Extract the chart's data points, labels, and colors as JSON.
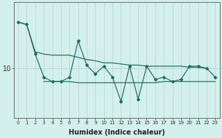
{
  "xlabel": "Humidex (Indice chaleur)",
  "bg_color": "#d4f0ec",
  "line_color": "#1a6e63",
  "grid_color": "#b8d8d4",
  "x_values": [
    0,
    1,
    2,
    3,
    4,
    5,
    6,
    7,
    8,
    9,
    10,
    11,
    12,
    13,
    14,
    15,
    16,
    17,
    18,
    19,
    20,
    21,
    22,
    23
  ],
  "y_main": [
    14.2,
    14.0,
    11.3,
    9.2,
    8.8,
    8.8,
    9.2,
    12.5,
    10.3,
    9.5,
    10.2,
    9.2,
    7.0,
    10.2,
    7.2,
    10.2,
    9.0,
    9.2,
    8.8,
    9.0,
    10.2,
    10.2,
    10.0,
    9.2
  ],
  "y_upper": [
    14.2,
    14.0,
    11.5,
    11.3,
    11.2,
    11.2,
    11.2,
    11.0,
    10.8,
    10.7,
    10.5,
    10.5,
    10.4,
    10.3,
    10.3,
    10.2,
    10.2,
    10.2,
    10.2,
    10.2,
    10.1,
    10.1,
    10.0,
    null
  ],
  "y_lower": [
    null,
    null,
    null,
    8.8,
    8.8,
    8.8,
    8.8,
    8.7,
    8.7,
    8.7,
    8.7,
    8.7,
    8.7,
    8.7,
    8.7,
    8.7,
    8.7,
    8.8,
    8.8,
    8.8,
    8.8,
    8.8,
    8.8,
    8.8
  ],
  "ylim": [
    5.5,
    16.0
  ],
  "yticks": [
    10
  ],
  "figsize": [
    3.2,
    2.0
  ],
  "dpi": 100
}
